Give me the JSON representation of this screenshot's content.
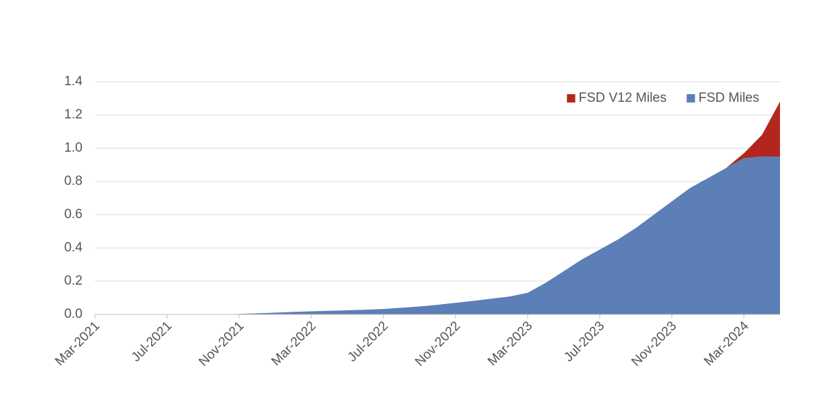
{
  "chart_data": {
    "type": "stacked_area",
    "categories": [
      "Mar-2021",
      null,
      null,
      null,
      "Jul-2021",
      null,
      null,
      null,
      "Nov-2021",
      null,
      null,
      null,
      "Mar-2022",
      null,
      null,
      null,
      "Jul-2022",
      null,
      null,
      null,
      "Nov-2022",
      null,
      null,
      null,
      "Mar-2023",
      null,
      null,
      null,
      "Jul-2023",
      null,
      null,
      null,
      "Nov-2023",
      null,
      null,
      null,
      "Mar-2024",
      null,
      null
    ],
    "series": [
      {
        "name": "FSD Miles",
        "color": "#5b7fb6",
        "values": [
          0,
          0,
          0,
          0,
          0,
          0,
          0,
          0,
          0.003,
          0.007,
          0.011,
          0.015,
          0.019,
          0.022,
          0.025,
          0.028,
          0.033,
          0.04,
          0.048,
          0.058,
          0.07,
          0.082,
          0.095,
          0.108,
          0.13,
          0.19,
          0.26,
          0.33,
          0.39,
          0.45,
          0.52,
          0.6,
          0.68,
          0.76,
          0.82,
          0.88,
          0.94,
          0.95,
          0.95
        ]
      },
      {
        "name": "FSD V12 Miles",
        "color": "#b3261e",
        "values": [
          0,
          0,
          0,
          0,
          0,
          0,
          0,
          0,
          0,
          0,
          0,
          0,
          0,
          0,
          0,
          0,
          0,
          0,
          0,
          0,
          0,
          0,
          0,
          0,
          0,
          0,
          0,
          0,
          0,
          0,
          0,
          0,
          0,
          0,
          0,
          0,
          0.03,
          0.13,
          0.33
        ]
      }
    ],
    "ylim": [
      0,
      1.4
    ],
    "yticks": [
      {
        "value": 0,
        "label": "0.0"
      },
      0.2,
      0.4,
      0.6,
      0.8,
      {
        "value": 1,
        "label": "1.0"
      },
      1.2,
      1.4
    ],
    "grid": true,
    "legend": "top-right"
  }
}
